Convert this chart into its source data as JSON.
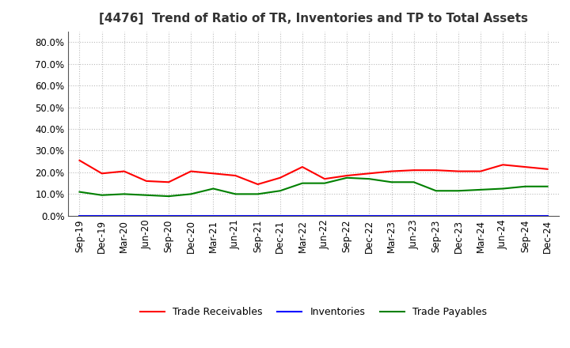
{
  "title": "[4476]  Trend of Ratio of TR, Inventories and TP to Total Assets",
  "x_labels": [
    "Sep-19",
    "Dec-19",
    "Mar-20",
    "Jun-20",
    "Sep-20",
    "Dec-20",
    "Mar-21",
    "Jun-21",
    "Sep-21",
    "Dec-21",
    "Mar-22",
    "Jun-22",
    "Sep-22",
    "Dec-22",
    "Mar-23",
    "Jun-23",
    "Sep-23",
    "Dec-23",
    "Mar-24",
    "Jun-24",
    "Sep-24",
    "Dec-24"
  ],
  "trade_receivables": [
    0.255,
    0.195,
    0.205,
    0.16,
    0.155,
    0.205,
    0.195,
    0.185,
    0.145,
    0.175,
    0.225,
    0.17,
    0.185,
    0.195,
    0.205,
    0.21,
    0.21,
    0.205,
    0.205,
    0.235,
    0.225,
    0.215
  ],
  "inventories": [
    0.001,
    0.001,
    0.001,
    0.001,
    0.001,
    0.001,
    0.001,
    0.001,
    0.001,
    0.001,
    0.001,
    0.001,
    0.001,
    0.001,
    0.001,
    0.001,
    0.001,
    0.001,
    0.001,
    0.001,
    0.001,
    0.001
  ],
  "trade_payables": [
    0.11,
    0.095,
    0.1,
    0.095,
    0.09,
    0.1,
    0.125,
    0.1,
    0.1,
    0.115,
    0.15,
    0.15,
    0.175,
    0.17,
    0.155,
    0.155,
    0.115,
    0.115,
    0.12,
    0.125,
    0.135,
    0.135
  ],
  "tr_color": "#ff0000",
  "inv_color": "#0000ff",
  "tp_color": "#008000",
  "ylim": [
    0.0,
    0.85
  ],
  "yticks": [
    0.0,
    0.1,
    0.2,
    0.3,
    0.4,
    0.5,
    0.6,
    0.7,
    0.8
  ],
  "background_color": "#ffffff",
  "plot_bg_color": "#ffffff",
  "grid_color": "#bbbbbb",
  "legend_labels": [
    "Trade Receivables",
    "Inventories",
    "Trade Payables"
  ],
  "title_fontsize": 11,
  "tick_fontsize": 8.5,
  "legend_fontsize": 9
}
